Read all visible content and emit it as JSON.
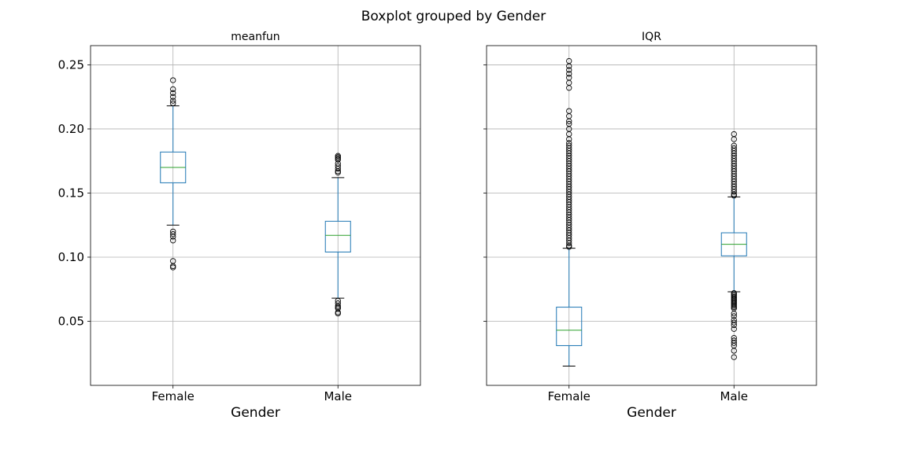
{
  "chart_data": {
    "type": "boxplot",
    "title": "Boxplot grouped by Gender",
    "ylim": [
      0.0,
      0.265
    ],
    "yticks": [
      0.05,
      0.1,
      0.15,
      0.2,
      0.25
    ],
    "ytick_labels": [
      "0.05",
      "0.10",
      "0.15",
      "0.20",
      "0.25"
    ],
    "grid": true,
    "colors": {
      "box": "#1f77b4",
      "median": "#2ca02c",
      "whisker": "#000000",
      "grid": "#b0b0b0"
    },
    "panels": [
      {
        "title": "meanfun",
        "xlabel": "Gender",
        "categories": [
          "Female",
          "Male"
        ],
        "boxes": [
          {
            "category": "Female",
            "whislo": 0.125,
            "q1": 0.158,
            "med": 0.17,
            "q3": 0.182,
            "whishi": 0.218,
            "fliers": [
              0.238,
              0.231,
              0.228,
              0.225,
              0.222,
              0.22,
              0.12,
              0.118,
              0.116,
              0.113,
              0.097,
              0.093,
              0.092
            ]
          },
          {
            "category": "Male",
            "whislo": 0.068,
            "q1": 0.104,
            "med": 0.117,
            "q3": 0.128,
            "whishi": 0.162,
            "fliers": [
              0.179,
              0.178,
              0.177,
              0.176,
              0.173,
              0.171,
              0.169,
              0.167,
              0.166,
              0.066,
              0.064,
              0.062,
              0.061,
              0.06,
              0.057,
              0.056
            ]
          }
        ]
      },
      {
        "title": "IQR",
        "xlabel": "Gender",
        "categories": [
          "Female",
          "Male"
        ],
        "boxes": [
          {
            "category": "Female",
            "whislo": 0.015,
            "q1": 0.031,
            "med": 0.043,
            "q3": 0.061,
            "whishi": 0.107,
            "fliers": [
              0.253,
              0.249,
              0.246,
              0.243,
              0.24,
              0.236,
              0.232,
              0.214,
              0.21,
              0.206,
              0.204,
              0.2,
              0.196,
              0.192,
              0.189,
              0.187,
              0.185,
              0.183,
              0.181,
              0.179,
              0.177,
              0.175,
              0.173,
              0.171,
              0.169,
              0.167,
              0.165,
              0.163,
              0.161,
              0.159,
              0.157,
              0.155,
              0.153,
              0.151,
              0.149,
              0.147,
              0.145,
              0.143,
              0.141,
              0.139,
              0.137,
              0.135,
              0.133,
              0.131,
              0.129,
              0.127,
              0.125,
              0.123,
              0.121,
              0.119,
              0.117,
              0.115,
              0.113,
              0.111,
              0.109,
              0.108
            ]
          },
          {
            "category": "Male",
            "whislo": 0.073,
            "q1": 0.101,
            "med": 0.11,
            "q3": 0.119,
            "whishi": 0.147,
            "fliers": [
              0.196,
              0.192,
              0.187,
              0.185,
              0.183,
              0.181,
              0.179,
              0.177,
              0.175,
              0.173,
              0.171,
              0.169,
              0.167,
              0.165,
              0.163,
              0.161,
              0.159,
              0.157,
              0.155,
              0.153,
              0.151,
              0.149,
              0.148,
              0.072,
              0.071,
              0.07,
              0.069,
              0.068,
              0.067,
              0.066,
              0.065,
              0.064,
              0.063,
              0.062,
              0.061,
              0.06,
              0.056,
              0.054,
              0.051,
              0.049,
              0.047,
              0.044,
              0.037,
              0.035,
              0.033,
              0.031,
              0.027,
              0.022
            ]
          }
        ]
      }
    ]
  }
}
